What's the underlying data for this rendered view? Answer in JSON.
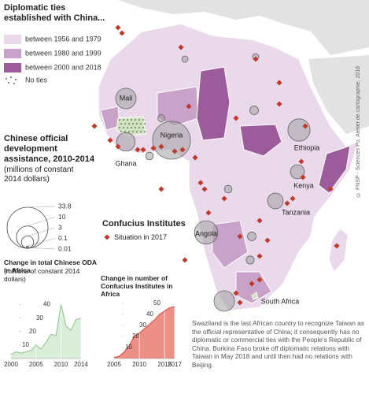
{
  "legend_ties": {
    "title": "Diplomatic ties established with China...",
    "items": [
      "between 1956 and 1979",
      "between 1980 and 1999",
      "between 2000 and 2018"
    ],
    "colors": [
      "#ead9ea",
      "#c8a2c8",
      "#9c5c9c"
    ],
    "no_ties": "No ties"
  },
  "legend_aid": {
    "title": "Chinese official development assistance, 2010-2014",
    "unit": "(millions of constant 2014 dollars)",
    "sizes": [
      33.8,
      10,
      3,
      0.1,
      0.01
    ]
  },
  "legend_ci": {
    "title": "Confucius Institutes",
    "item": "Situation in 2017"
  },
  "country_labels": [
    "Mali",
    "Nigeria",
    "Ghana",
    "Ethiopia",
    "Kenya",
    "Tanzania",
    "Angola",
    "South Africa"
  ],
  "aid_circles": [
    29,
    11,
    10,
    8.5,
    8.5,
    7,
    5,
    4,
    1.5,
    1.2,
    1.5,
    1.3,
    0.8,
    0.8,
    1,
    1.2
  ],
  "credit": "© FNSP - Sciences Po, Atelier de cartographie, 2018",
  "note": "Swaziland is the last African country to recognize Taiwan as the official representative of China; it consequently has no diplomatic or commercial ties with the People's Republic of China. Burkina Faso broke off diplomatic relations with Taiwan in May 2018 and until then had no relations with Beijing.",
  "chart_data": [
    {
      "type": "area",
      "title": "Change in total Chinese ODA in Africa",
      "subtitle": "(millions of constant 2014 dollars)",
      "x": [
        2000,
        2001,
        2002,
        2003,
        2004,
        2005,
        2006,
        2007,
        2008,
        2009,
        2010,
        2011,
        2012,
        2013,
        2014
      ],
      "values": [
        3,
        5,
        4,
        5,
        6,
        10,
        7,
        12,
        18,
        17,
        40,
        24,
        21,
        29,
        30
      ],
      "color": "#9cc79c",
      "fill": "#d9edd9",
      "xlim": [
        2000,
        2014
      ],
      "xticks": [
        2000,
        2005,
        2010,
        2014
      ],
      "ylim": [
        0,
        45
      ],
      "yticks": [
        10,
        20,
        30,
        40
      ]
    },
    {
      "type": "area",
      "title": "Change in number of Confucius Institutes in Africa",
      "x": [
        2005,
        2006,
        2007,
        2008,
        2009,
        2010,
        2011,
        2012,
        2013,
        2014,
        2015,
        2016,
        2017
      ],
      "values": [
        1,
        2,
        6,
        12,
        20,
        23,
        27,
        31,
        35,
        40,
        43,
        46,
        47
      ],
      "color": "#d9534f",
      "fill": "#ec8f85",
      "xlim": [
        2005,
        2017
      ],
      "xticks": [
        2005,
        2010,
        2015,
        2017
      ],
      "ylim": [
        0,
        55
      ],
      "yticks": [
        10,
        20,
        30,
        40,
        50
      ]
    }
  ]
}
